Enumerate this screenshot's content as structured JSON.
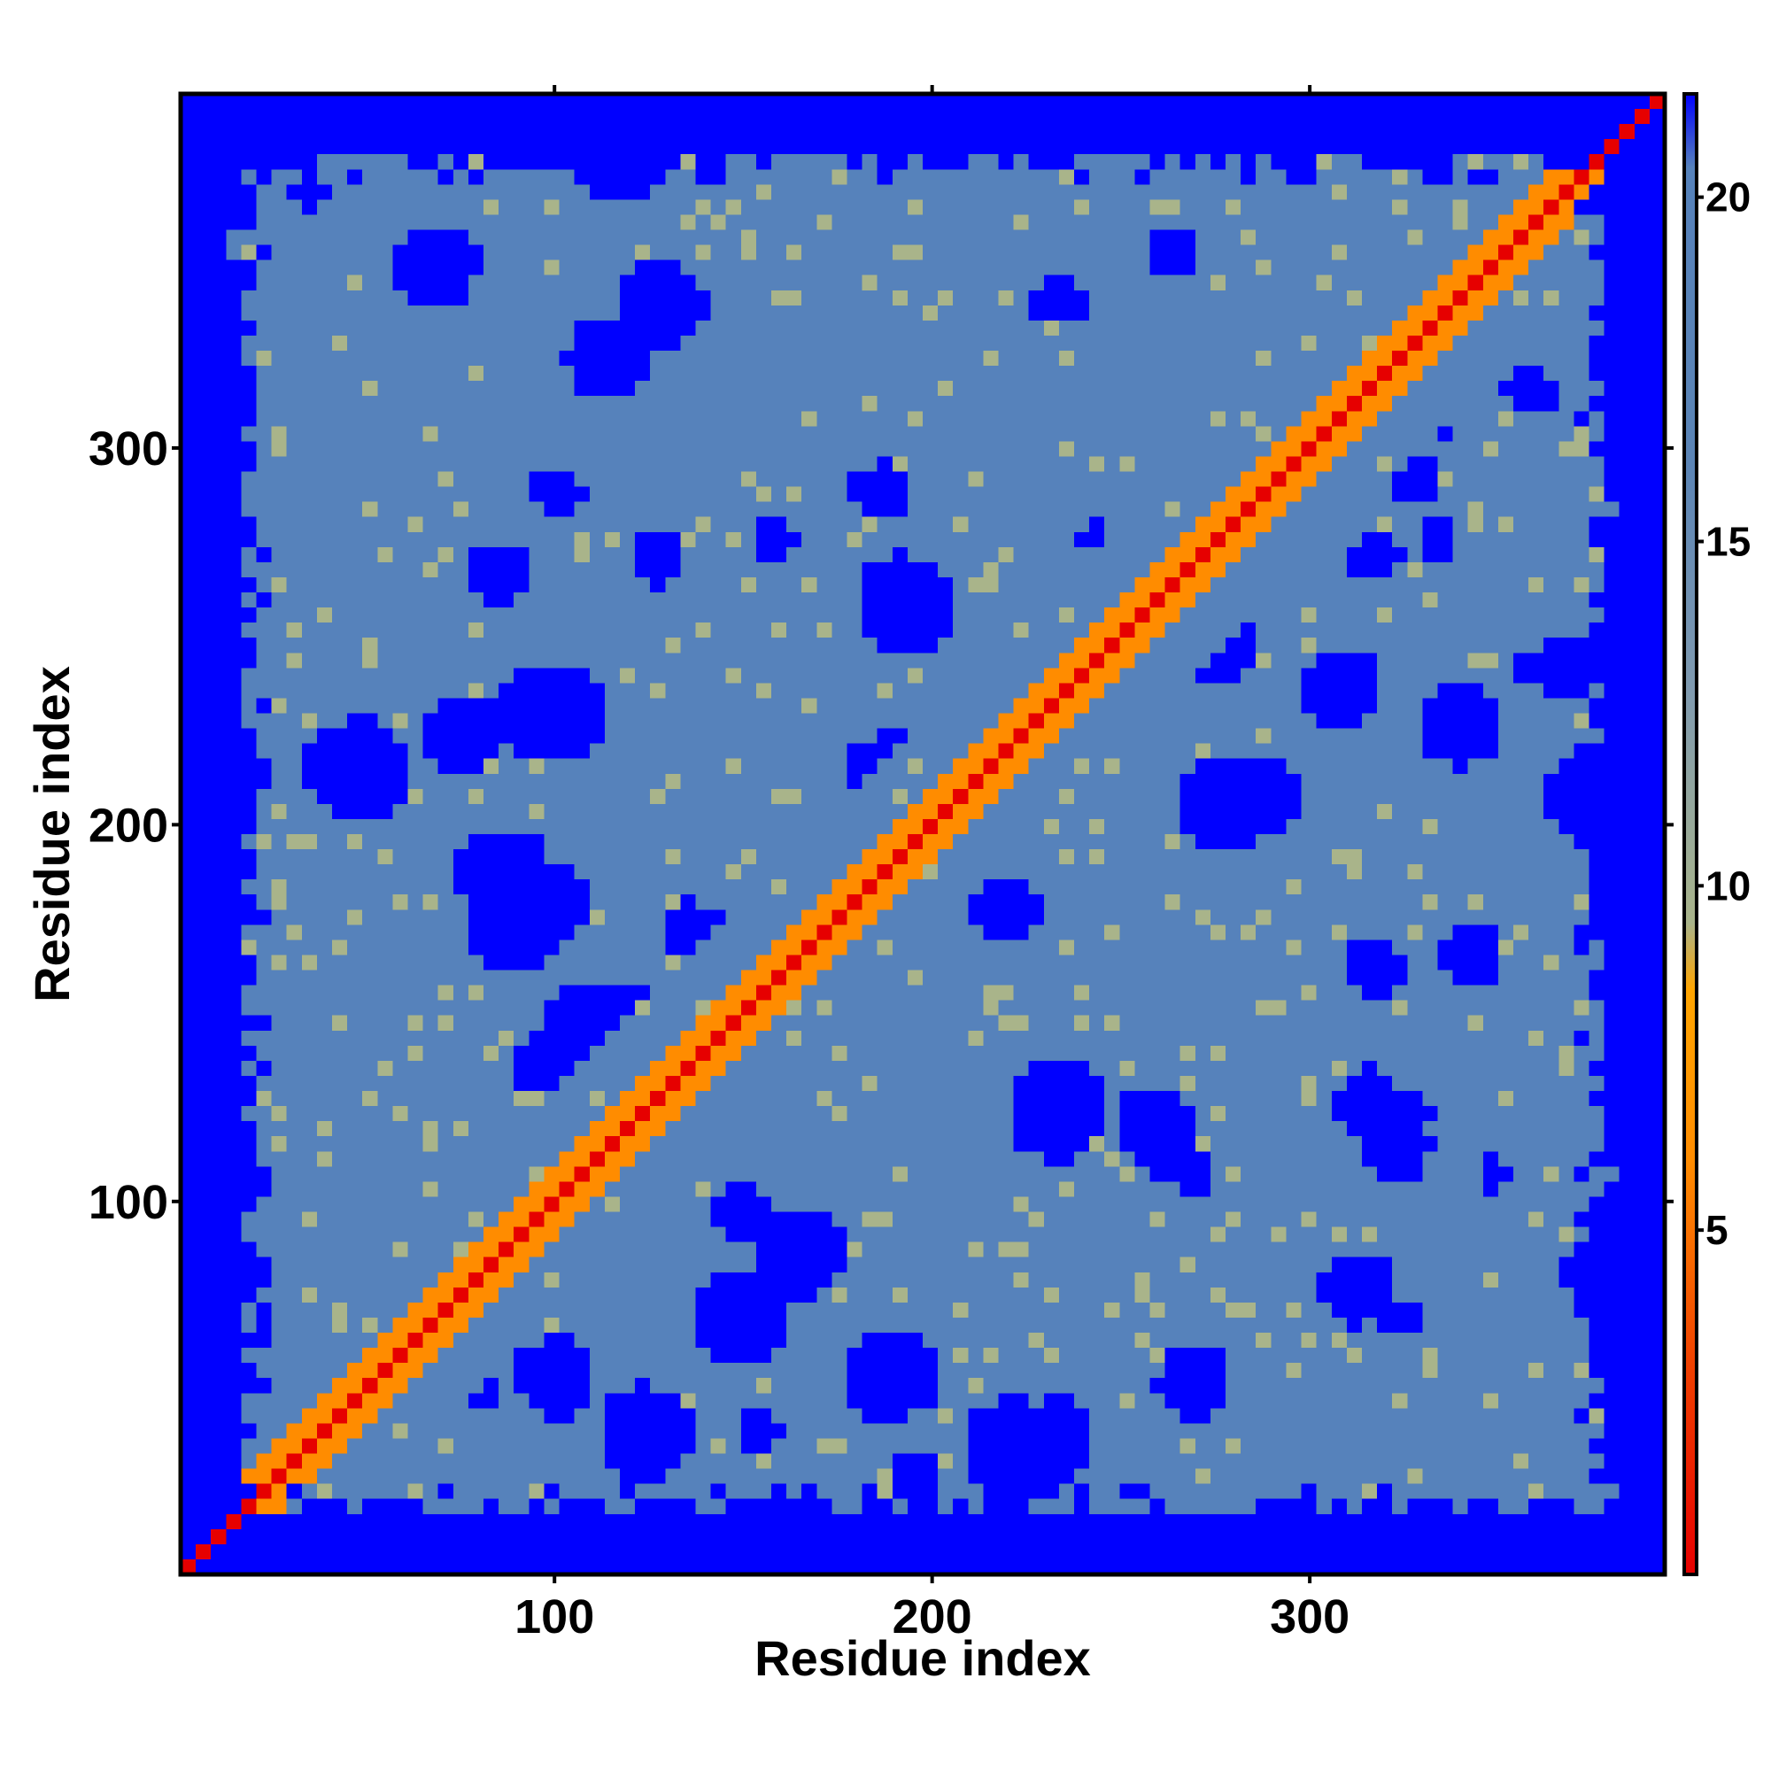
{
  "chart_data": {
    "type": "heatmap",
    "title": "",
    "xlabel": "Residue index",
    "ylabel": "Residue index",
    "xlim": [
      1,
      394
    ],
    "ylim": [
      1,
      394
    ],
    "x_ticks": [
      100,
      200,
      300
    ],
    "y_ticks": [
      100,
      200,
      300
    ],
    "colorbar": {
      "ticks": [
        5,
        10,
        15,
        20
      ],
      "range": [
        0,
        21.5
      ],
      "stops": [
        {
          "value": 0,
          "color": "#e60000"
        },
        {
          "value": 3,
          "color": "#f04000"
        },
        {
          "value": 6,
          "color": "#ff8c00"
        },
        {
          "value": 8.5,
          "color": "#ffa500"
        },
        {
          "value": 9.5,
          "color": "#a9b48a"
        },
        {
          "value": 13,
          "color": "#7f9ab0"
        },
        {
          "value": 16,
          "color": "#5b84b5"
        },
        {
          "value": 20.5,
          "color": "#5682bb"
        },
        {
          "value": 21.5,
          "color": "#0000ff"
        }
      ]
    },
    "description_values": {
      "diagonal_value": 1,
      "far_value": 21,
      "cutoff": 20.5
    },
    "colors": {
      "far": "#0000ff",
      "mid": "#5682bb",
      "near": "#a9b48a",
      "contact": "#ff8c00",
      "diagonal": "#e60000"
    }
  }
}
